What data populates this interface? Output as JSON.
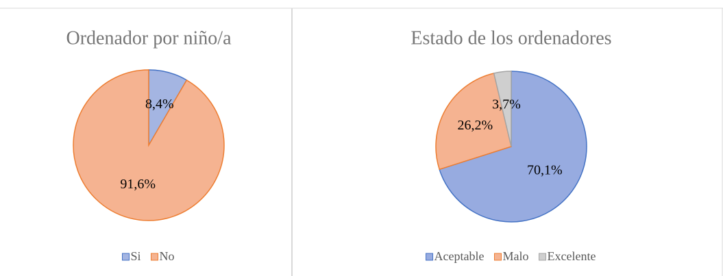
{
  "chart_data": [
    {
      "type": "pie",
      "title": "Ordenador por niño/a",
      "categories": [
        "Si",
        "No"
      ],
      "values": [
        8.4,
        91.6
      ],
      "value_labels": [
        "8,4%",
        "91,6%"
      ],
      "colors": [
        "#a4b5e2",
        "#f5b391"
      ],
      "stroke_colors": [
        "#4472c4",
        "#ed7d31"
      ],
      "legend": "bottom"
    },
    {
      "type": "pie",
      "title": "Estado de los ordenadores",
      "categories": [
        "Aceptable",
        "Malo",
        "Excelente"
      ],
      "values": [
        70.1,
        26.2,
        3.7
      ],
      "value_labels": [
        "70,1%",
        "26,2%",
        "3,7%"
      ],
      "colors": [
        "#97abe0",
        "#f5b391",
        "#cfcfcf"
      ],
      "stroke_colors": [
        "#4472c4",
        "#ed7d31",
        "#a5a5a5"
      ],
      "legend": "bottom"
    }
  ]
}
